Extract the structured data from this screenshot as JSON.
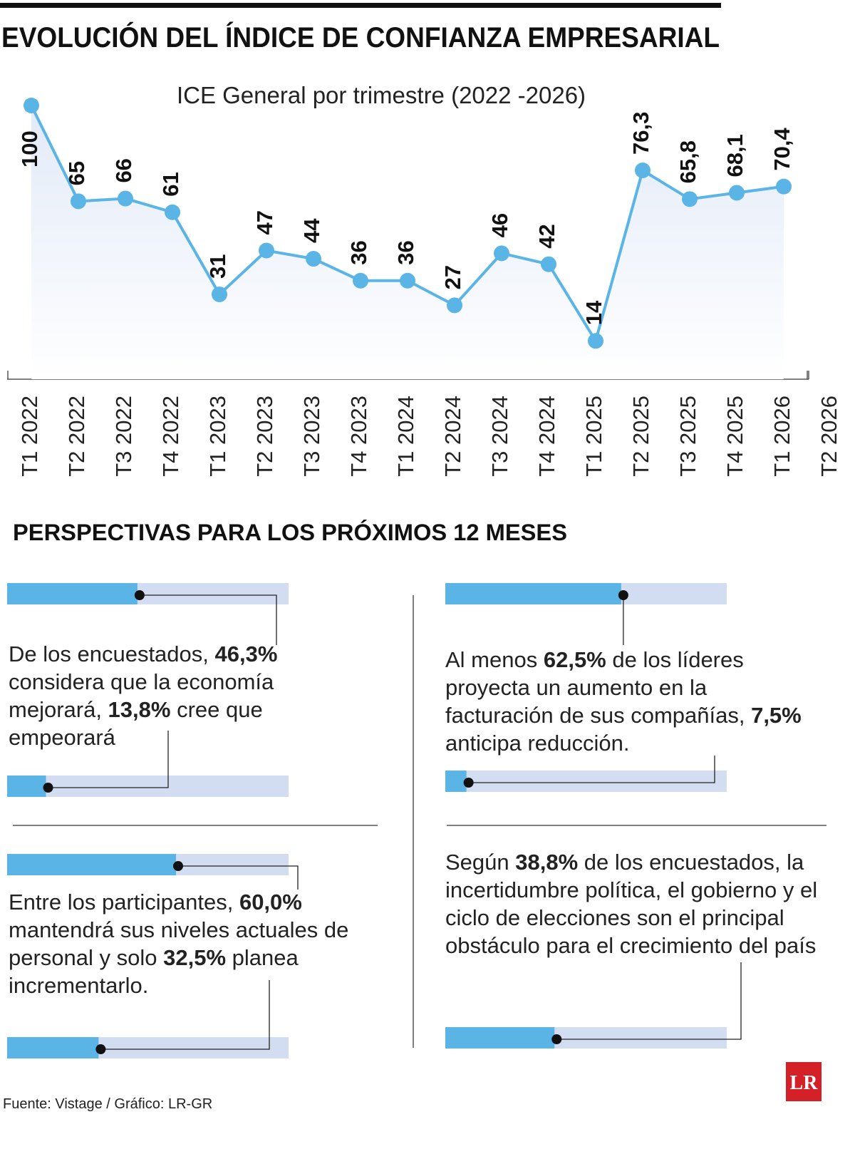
{
  "chart_data": {
    "type": "line",
    "title": "EVOLUCIÓN DEL ÍNDICE DE CONFIANZA EMPRESARIAL",
    "subtitle": "ICE General por trimestre (2022 -2026)",
    "categories": [
      "T1 2022",
      "T2 2022",
      "T3 2022",
      "T4 2022",
      "T1 2023",
      "T2 2023",
      "T3 2023",
      "T4 2023",
      "T1 2024",
      "T2 2024",
      "T3 2024",
      "T4 2024",
      "T1 2025",
      "T2 2025",
      "T3 2025",
      "T4 2025",
      "T1 2026",
      "T2 2026"
    ],
    "values": [
      100,
      65,
      66,
      61,
      31,
      47,
      44,
      36,
      36,
      27,
      46,
      42,
      14,
      76.3,
      65.8,
      68.1,
      70.4,
      null
    ],
    "value_labels": [
      "100",
      "65",
      "66",
      "61",
      "31",
      "47",
      "44",
      "36",
      "36",
      "27",
      "46",
      "42",
      "14",
      "76,3",
      "65,8",
      "68,1",
      "70,4",
      null
    ],
    "color": "#5ab4e5",
    "ylim": [
      0,
      100
    ]
  },
  "perspectives": {
    "title": "PERSPECTIVAS PARA LOS PRÓXIMOS 12 MESES",
    "bar_color": "#5ab4e5",
    "track_color": "#d3ddf1",
    "cards": [
      {
        "parts": [
          {
            "text": "De los encuestados, "
          },
          {
            "text": "46,3%",
            "bold": true
          },
          {
            "text": " considera que la economía mejorará, "
          },
          {
            "text": "13,8%",
            "bold": true
          },
          {
            "text": " cree que empeorará"
          }
        ],
        "values": [
          46.3,
          13.8
        ]
      },
      {
        "parts": [
          {
            "text": "Al menos "
          },
          {
            "text": "62,5%",
            "bold": true
          },
          {
            "text": " de los líderes proyecta un aumento en la facturación de sus compañías, "
          },
          {
            "text": "7,5%",
            "bold": true
          },
          {
            "text": " anticipa reducción."
          }
        ],
        "values": [
          62.5,
          7.5
        ]
      },
      {
        "parts": [
          {
            "text": "Entre los participantes, "
          },
          {
            "text": "60,0%",
            "bold": true
          },
          {
            "text": " mantendrá sus niveles actuales de personal y solo "
          },
          {
            "text": "32,5%",
            "bold": true
          },
          {
            "text": " planea incrementarlo."
          }
        ],
        "values": [
          60.0,
          32.5
        ]
      },
      {
        "parts": [
          {
            "text": "Según "
          },
          {
            "text": "38,8%",
            "bold": true
          },
          {
            "text": " de los encuesta­dos, la incertidumbre política, el gobierno y el ciclo de elecciones son el principal obstáculo para el crecimiento del país"
          }
        ],
        "values": [
          38.8
        ]
      }
    ]
  },
  "footer": "Fuente: Vistage / Gráfico: LR-GR",
  "logo": "LR"
}
